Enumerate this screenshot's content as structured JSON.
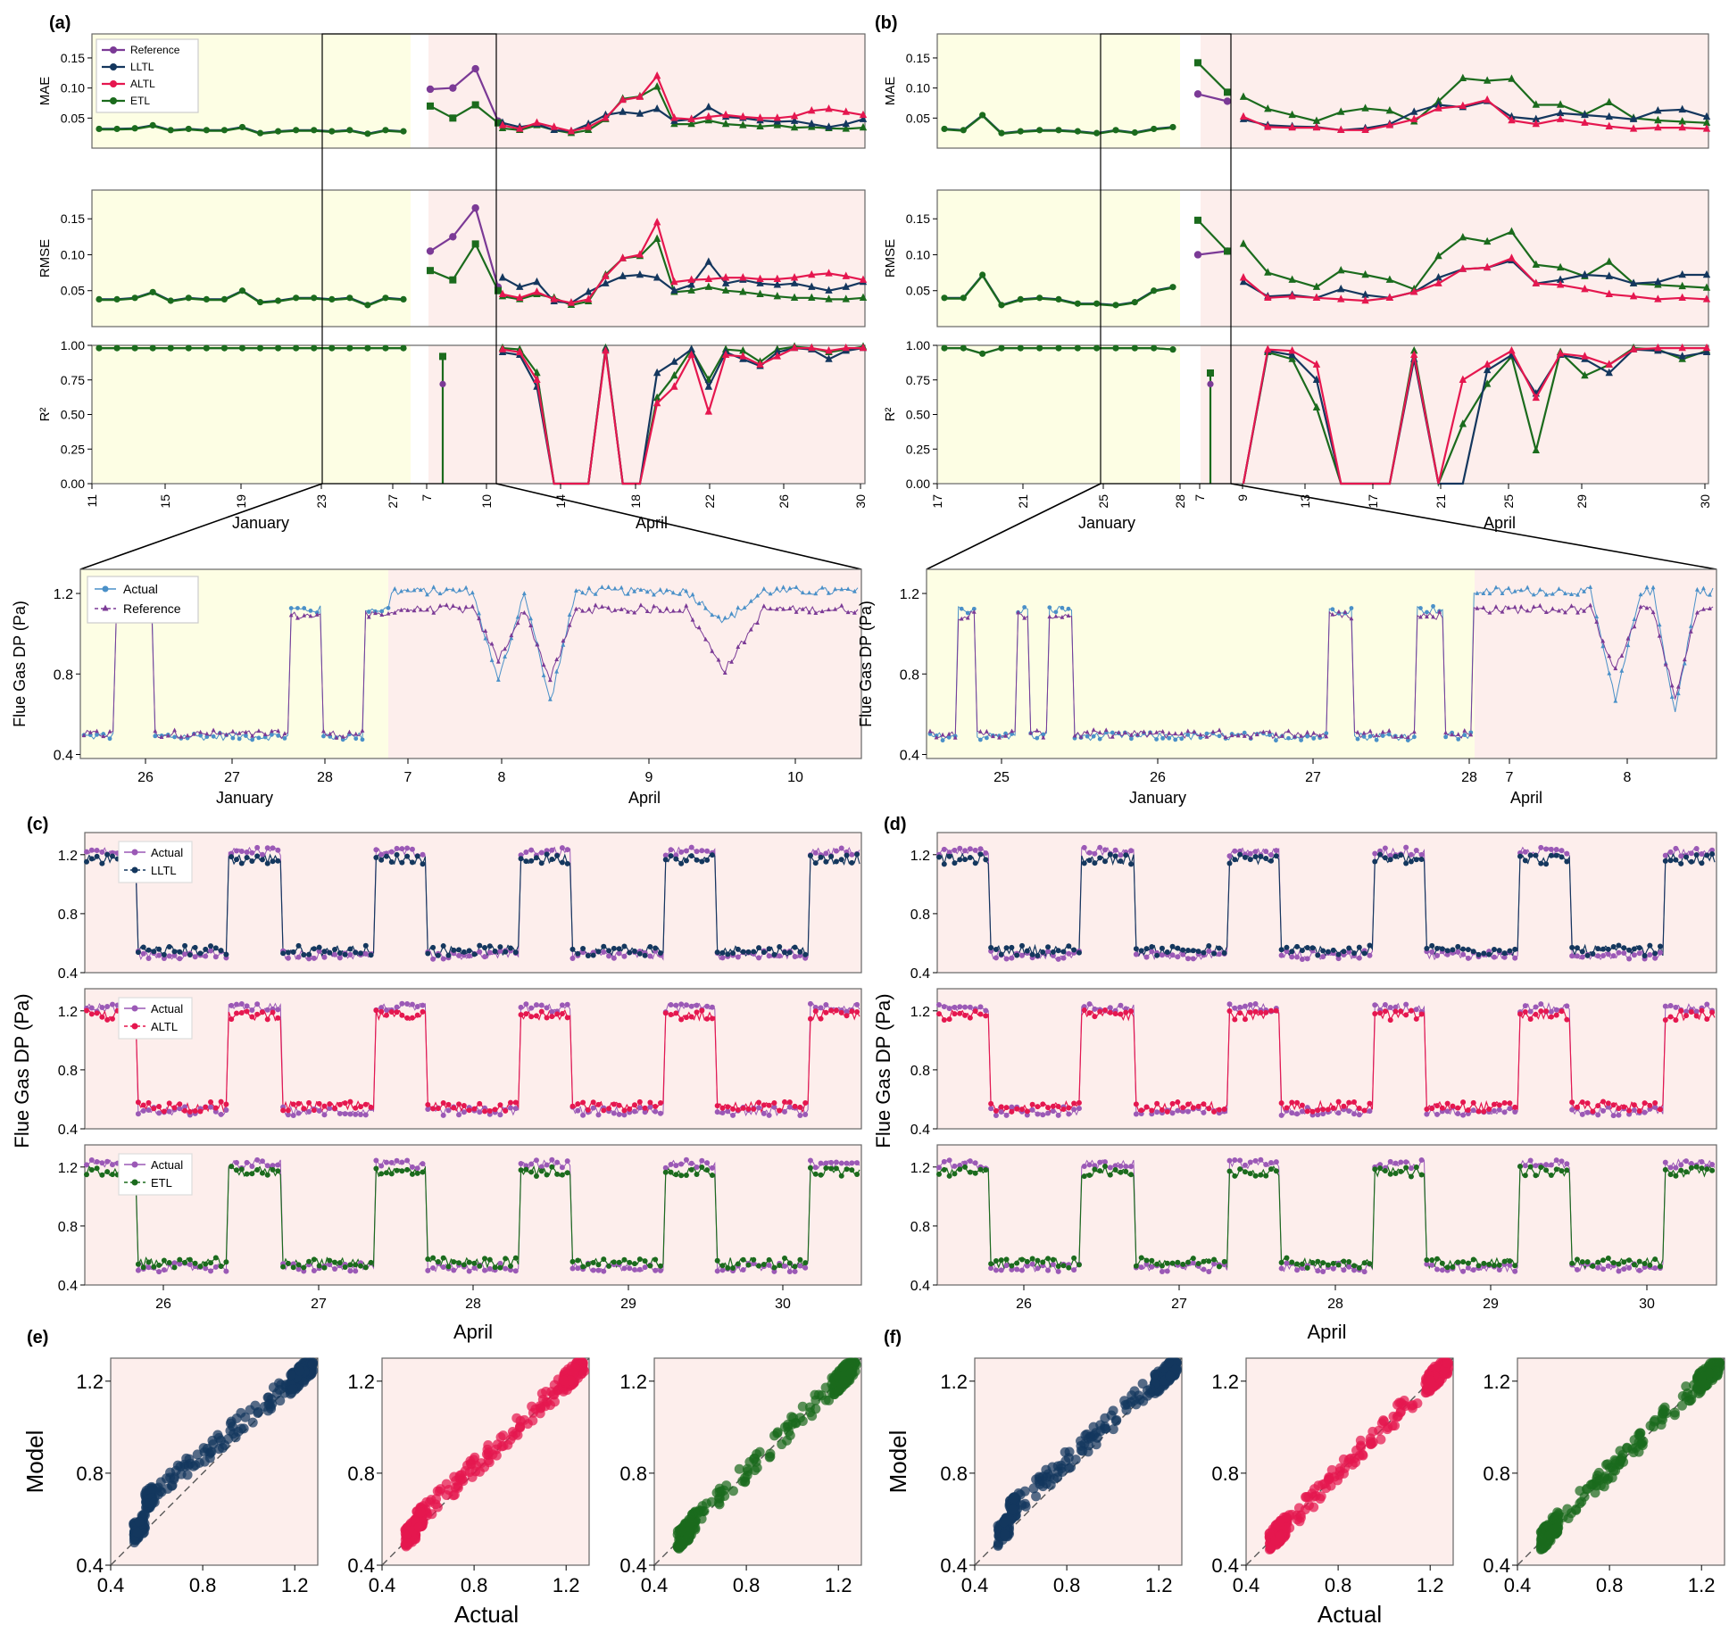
{
  "colors": {
    "reference": "#7b3a96",
    "lltl": "#14375e",
    "altl": "#e5174f",
    "etl": "#1b6b1d",
    "actual": "#4a90c8",
    "actual_purple": "#9b59b6",
    "jan_bg": "#fdfee4",
    "apr_bg": "#fdeeec"
  },
  "panel_labels": {
    "a": "(a)",
    "b": "(b)",
    "c": "(c)",
    "d": "(d)",
    "e": "(e)",
    "f": "(f)"
  },
  "metric_labels": {
    "mae": "MAE",
    "rmse": "RMSE",
    "r2": "R²"
  },
  "axis_labels": {
    "flue_gas": "Flue Gas DP (Pa)",
    "january": "January",
    "april": "April",
    "model": "Model",
    "actual": "Actual"
  },
  "legend_a": [
    "Reference",
    "LLTL",
    "ALTL",
    "ETL"
  ],
  "legend_zoom": [
    "Actual",
    "Reference"
  ],
  "legend_c": [
    [
      "Actual",
      "LLTL"
    ],
    [
      "Actual",
      "ALTL"
    ],
    [
      "Actual",
      "ETL"
    ]
  ],
  "chart_data": [
    {
      "panel": "a",
      "type": "line",
      "x_ticks": [
        "11",
        "15",
        "19",
        "23",
        "27",
        "7",
        "10",
        "14",
        "18",
        "22",
        "26",
        "30"
      ],
      "x_groups": [
        "January",
        "April"
      ],
      "series_names": [
        "Reference",
        "LLTL",
        "ALTL",
        "ETL"
      ],
      "mae": {
        "ylim": [
          0,
          0.19
        ],
        "yticks": [
          0.05,
          0.1,
          0.15
        ],
        "january": [
          0.032,
          0.032,
          0.033,
          0.038,
          0.03,
          0.032,
          0.03,
          0.03,
          0.035,
          0.025,
          0.028,
          0.03,
          0.03,
          0.028,
          0.03,
          0.024,
          0.03,
          0.028
        ],
        "april_reference": [
          0.098,
          0.1,
          0.132,
          0.045
        ],
        "april_etl_head": [
          0.07,
          0.05,
          0.072,
          0.042
        ],
        "april_tail_lltl": [
          0.042,
          0.035,
          0.04,
          0.03,
          0.028,
          0.04,
          0.055,
          0.06,
          0.057,
          0.065,
          0.045,
          0.048,
          0.068,
          0.052,
          0.05,
          0.046,
          0.044,
          0.045,
          0.04,
          0.035,
          0.04,
          0.048
        ],
        "april_tail_altl": [
          0.038,
          0.032,
          0.042,
          0.035,
          0.028,
          0.035,
          0.05,
          0.08,
          0.085,
          0.12,
          0.05,
          0.048,
          0.052,
          0.055,
          0.052,
          0.05,
          0.05,
          0.053,
          0.062,
          0.065,
          0.06,
          0.055
        ],
        "april_tail_etl": [
          0.033,
          0.03,
          0.038,
          0.03,
          0.025,
          0.03,
          0.048,
          0.082,
          0.086,
          0.102,
          0.04,
          0.04,
          0.046,
          0.04,
          0.038,
          0.036,
          0.038,
          0.034,
          0.035,
          0.033,
          0.032,
          0.034
        ]
      },
      "rmse": {
        "ylim": [
          0,
          0.19
        ],
        "yticks": [
          0.05,
          0.1,
          0.15
        ],
        "january": [
          0.038,
          0.038,
          0.04,
          0.048,
          0.036,
          0.04,
          0.038,
          0.038,
          0.05,
          0.034,
          0.036,
          0.04,
          0.04,
          0.038,
          0.04,
          0.03,
          0.04,
          0.038
        ],
        "april_reference": [
          0.105,
          0.125,
          0.165,
          0.055
        ],
        "april_etl_head": [
          0.078,
          0.065,
          0.115,
          0.05
        ],
        "april_tail_lltl": [
          0.068,
          0.055,
          0.062,
          0.035,
          0.033,
          0.048,
          0.06,
          0.07,
          0.072,
          0.068,
          0.05,
          0.058,
          0.09,
          0.06,
          0.065,
          0.06,
          0.058,
          0.06,
          0.055,
          0.05,
          0.055,
          0.062
        ],
        "april_tail_altl": [
          0.045,
          0.04,
          0.048,
          0.038,
          0.033,
          0.038,
          0.07,
          0.095,
          0.1,
          0.145,
          0.062,
          0.065,
          0.066,
          0.068,
          0.068,
          0.066,
          0.066,
          0.068,
          0.072,
          0.074,
          0.07,
          0.065
        ],
        "april_tail_etl": [
          0.042,
          0.038,
          0.045,
          0.04,
          0.03,
          0.035,
          0.072,
          0.095,
          0.098,
          0.122,
          0.048,
          0.05,
          0.055,
          0.05,
          0.048,
          0.045,
          0.042,
          0.04,
          0.04,
          0.038,
          0.038,
          0.04
        ]
      },
      "r2": {
        "ylim": [
          0,
          1.0
        ],
        "yticks": [
          0.0,
          0.25,
          0.5,
          0.75,
          1.0
        ],
        "january": [
          0.98,
          0.98,
          0.98,
          0.98,
          0.98,
          0.98,
          0.98,
          0.98,
          0.98,
          0.98,
          0.98,
          0.98,
          0.98,
          0.98,
          0.98,
          0.98,
          0.98,
          0.98
        ],
        "april_spike": 0.92,
        "april_tail_lltl": [
          0.95,
          0.93,
          0.7,
          0.0,
          0.0,
          0.0,
          0.97,
          0.0,
          0.0,
          0.8,
          0.88,
          0.97,
          0.7,
          0.95,
          0.9,
          0.85,
          0.95,
          0.98,
          0.97,
          0.9,
          0.96,
          0.98
        ],
        "april_tail_altl": [
          0.97,
          0.95,
          0.75,
          0.0,
          0.0,
          0.0,
          0.96,
          0.0,
          0.0,
          0.58,
          0.7,
          0.93,
          0.52,
          0.93,
          0.92,
          0.86,
          0.92,
          0.98,
          0.98,
          0.96,
          0.98,
          0.98
        ],
        "april_tail_etl": [
          0.98,
          0.97,
          0.8,
          0.0,
          0.0,
          0.0,
          0.98,
          0.0,
          0.0,
          0.62,
          0.78,
          0.97,
          0.75,
          0.97,
          0.96,
          0.88,
          0.97,
          0.99,
          0.98,
          0.95,
          0.97,
          0.99
        ]
      }
    },
    {
      "panel": "b",
      "type": "line",
      "x_ticks": [
        "17",
        "21",
        "25",
        "28",
        "7",
        "9",
        "13",
        "17",
        "21",
        "25",
        "29",
        "30"
      ],
      "x_groups": [
        "January",
        "April"
      ],
      "mae": {
        "ylim": [
          0,
          0.19
        ],
        "yticks": [
          0.05,
          0.1,
          0.15
        ],
        "january": [
          0.032,
          0.03,
          0.055,
          0.025,
          0.028,
          0.03,
          0.03,
          0.028,
          0.025,
          0.03,
          0.026,
          0.032,
          0.035
        ],
        "april_reference": [
          0.09,
          0.078
        ],
        "april_etl_head": [
          0.142,
          0.093
        ],
        "april_tail_lltl": [
          0.048,
          0.038,
          0.036,
          0.035,
          0.03,
          0.033,
          0.04,
          0.06,
          0.072,
          0.068,
          0.078,
          0.052,
          0.048,
          0.058,
          0.055,
          0.052,
          0.048,
          0.062,
          0.064,
          0.052
        ],
        "april_tail_altl": [
          0.052,
          0.035,
          0.034,
          0.034,
          0.03,
          0.03,
          0.038,
          0.048,
          0.066,
          0.07,
          0.08,
          0.046,
          0.04,
          0.048,
          0.042,
          0.036,
          0.032,
          0.034,
          0.034,
          0.032
        ],
        "april_tail_etl": [
          0.085,
          0.065,
          0.055,
          0.045,
          0.06,
          0.066,
          0.062,
          0.044,
          0.078,
          0.116,
          0.112,
          0.115,
          0.072,
          0.072,
          0.056,
          0.076,
          0.05,
          0.046,
          0.044,
          0.042
        ]
      },
      "rmse": {
        "ylim": [
          0,
          0.19
        ],
        "yticks": [
          0.05,
          0.1,
          0.15
        ],
        "january": [
          0.04,
          0.04,
          0.072,
          0.03,
          0.038,
          0.04,
          0.038,
          0.032,
          0.032,
          0.03,
          0.034,
          0.05,
          0.055
        ],
        "april_reference": [
          0.1,
          0.105
        ],
        "april_etl_head": [
          0.148,
          0.105
        ],
        "april_tail_lltl": [
          0.062,
          0.042,
          0.044,
          0.04,
          0.052,
          0.044,
          0.04,
          0.048,
          0.068,
          0.08,
          0.082,
          0.092,
          0.06,
          0.065,
          0.072,
          0.07,
          0.06,
          0.062,
          0.072,
          0.072
        ],
        "april_tail_altl": [
          0.068,
          0.04,
          0.042,
          0.04,
          0.038,
          0.036,
          0.04,
          0.048,
          0.06,
          0.08,
          0.082,
          0.095,
          0.06,
          0.058,
          0.052,
          0.045,
          0.042,
          0.038,
          0.04,
          0.038
        ],
        "april_tail_etl": [
          0.115,
          0.075,
          0.065,
          0.055,
          0.078,
          0.072,
          0.065,
          0.052,
          0.098,
          0.124,
          0.118,
          0.132,
          0.086,
          0.082,
          0.07,
          0.09,
          0.06,
          0.058,
          0.056,
          0.054
        ]
      },
      "r2": {
        "ylim": [
          0,
          1.0
        ],
        "yticks": [
          0.0,
          0.25,
          0.5,
          0.75,
          1.0
        ],
        "january": [
          0.98,
          0.98,
          0.94,
          0.98,
          0.98,
          0.98,
          0.98,
          0.98,
          0.98,
          0.98,
          0.98,
          0.98,
          0.97
        ],
        "april_spike": 0.8,
        "april_tail_lltl": [
          0.0,
          0.96,
          0.93,
          0.75,
          0.0,
          0.0,
          0.0,
          0.9,
          0.0,
          0.0,
          0.82,
          0.93,
          0.65,
          0.93,
          0.9,
          0.8,
          0.97,
          0.96,
          0.92,
          0.95
        ],
        "april_tail_altl": [
          0.0,
          0.97,
          0.96,
          0.86,
          0.0,
          0.0,
          0.0,
          0.93,
          0.0,
          0.75,
          0.86,
          0.96,
          0.62,
          0.94,
          0.92,
          0.86,
          0.97,
          0.98,
          0.98,
          0.98
        ],
        "april_tail_etl": [
          0.0,
          0.95,
          0.9,
          0.55,
          0.0,
          0.0,
          0.0,
          0.96,
          0.0,
          0.43,
          0.72,
          0.92,
          0.24,
          0.95,
          0.78,
          0.86,
          0.98,
          0.97,
          0.9,
          0.96
        ]
      }
    },
    {
      "panel": "zoom-a",
      "type": "line",
      "ylabel": "Flue Gas DP (Pa)",
      "ylim": [
        0.38,
        1.32
      ],
      "yticks": [
        0.4,
        0.8,
        1.2
      ],
      "x_ticks": [
        "26",
        "27",
        "28",
        "7",
        "8",
        "9",
        "10"
      ],
      "x_groups": [
        "January",
        "April"
      ]
    },
    {
      "panel": "zoom-b",
      "type": "line",
      "ylabel": "Flue Gas DP (Pa)",
      "ylim": [
        0.38,
        1.32
      ],
      "yticks": [
        0.4,
        0.8,
        1.2
      ],
      "x_ticks": [
        "25",
        "26",
        "27",
        "28",
        "7",
        "8"
      ],
      "x_groups": [
        "January",
        "April"
      ]
    },
    {
      "panel": "c-d",
      "type": "line",
      "ylabel": "Flue Gas DP (Pa)",
      "xlabel": "April",
      "ylim": [
        0.4,
        1.35
      ],
      "yticks": [
        0.4,
        0.8,
        1.2
      ],
      "x_ticks": [
        "26",
        "27",
        "28",
        "29",
        "30"
      ],
      "series": [
        {
          "name": "Actual"
        },
        {
          "name": "LLTL"
        },
        {
          "name": "ALTL"
        },
        {
          "name": "ETL"
        }
      ]
    },
    {
      "panel": "e-f",
      "type": "scatter",
      "xlabel": "Actual",
      "ylabel": "Model",
      "xlim": [
        0.4,
        1.3
      ],
      "ylim": [
        0.4,
        1.3
      ],
      "ticks": [
        0.4,
        0.8,
        1.2
      ]
    }
  ]
}
